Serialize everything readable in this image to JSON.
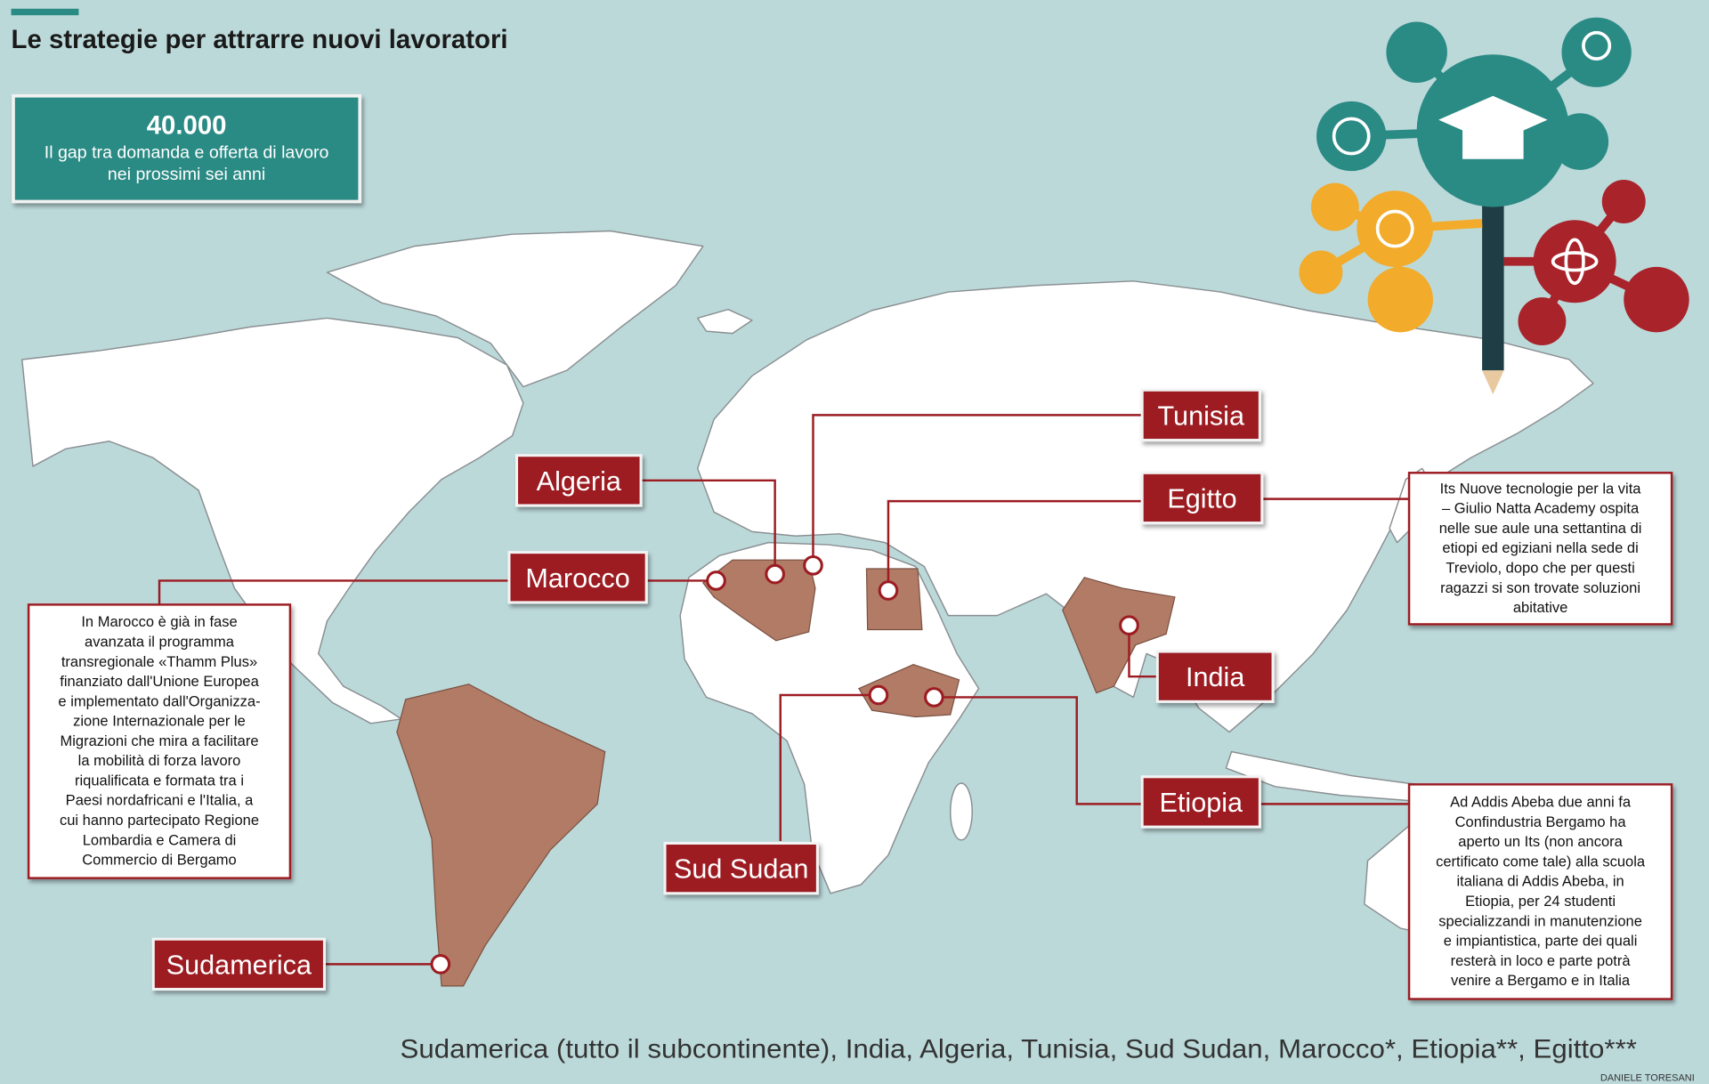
{
  "title": "Le strategie per attrarre nuovi lavoratori",
  "stat": {
    "value": "40.000",
    "lines": [
      "Il gap tra domanda e offerta di lavoro",
      "nei prossimi sei anni"
    ]
  },
  "countries": [
    {
      "label": "Tunisia"
    },
    {
      "label": "Algeria"
    },
    {
      "label": "Egitto"
    },
    {
      "label": "Marocco"
    },
    {
      "label": "India"
    },
    {
      "label": "Etiopia"
    },
    {
      "label": "Sud Sudan"
    },
    {
      "label": "Sudamerica"
    }
  ],
  "notes": [
    {
      "country": "Marocco",
      "lines": [
        "In Marocco è già in fase",
        "avanzata il programma",
        "transregionale «Thamm Plus»",
        "finanziato dall'Unione Europea",
        "e implementato dall'Organizza-",
        "zione Internazionale per le",
        "Migrazioni che mira a facilitare",
        "la mobilità di forza lavoro",
        "riqualificata e formata tra i",
        "Paesi nordafricani e l'Italia, a",
        "cui hanno partecipato Regione",
        "Lombardia e Camera di",
        "Commercio di Bergamo"
      ]
    },
    {
      "country": "Egitto",
      "lines": [
        "Its Nuove tecnologie per la vita",
        "– Giulio Natta Academy ospita",
        "nelle sue aule una settantina di",
        "etiopi ed egiziani nella sede di",
        "Treviolo, dopo che per questi",
        "ragazzi si son trovate soluzioni",
        "abitative"
      ]
    },
    {
      "country": "Etiopia",
      "lines": [
        "Ad Addis Abeba due anni fa",
        "Confindustria Bergamo ha",
        "aperto un Its (non ancora",
        "certificato come tale) alla scuola",
        "italiana di Addis Abeba, in",
        "Etiopia, per 24 studenti",
        "specializzandi in manutenzione",
        "e impiantistica, parte dei quali",
        "resterà in loco e parte potrà",
        "venire a Bergamo e in Italia"
      ]
    }
  ],
  "footer": "Sudamerica  (tutto il subcontinente), India, Algeria, Tunisia, Sud Sudan, Marocco*, Etiopia**, Egitto***",
  "credit": "DANIELE TORESANI"
}
